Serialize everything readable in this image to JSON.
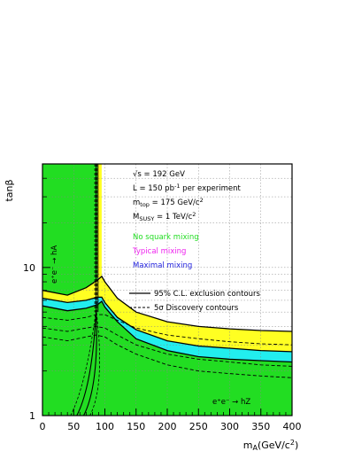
{
  "chart_data": {
    "type": "line",
    "xlabel": "m",
    "xlabel_sub": "A",
    "xlabel_unit": "(GeV/c",
    "xlabel_unit_sup": "2",
    "xlabel_unit_end": ")",
    "ylabel": "tanβ",
    "xlim": [
      0,
      400
    ],
    "ylim": [
      1,
      50
    ],
    "y_scale": "log",
    "grid": true,
    "x_ticks": [
      0,
      50,
      100,
      150,
      200,
      250,
      300,
      350,
      400
    ],
    "x_tick_labels": [
      "0",
      "50",
      "100",
      "150",
      "200",
      "250",
      "300",
      "350",
      "400"
    ],
    "y_ticks": [
      1,
      10
    ],
    "y_tick_labels": [
      "1",
      "10"
    ],
    "colors": {
      "excluded": "#22dd22",
      "typical_band": "#ffff22",
      "maximal_band": "#22eeee",
      "no_mixing_text": "#22dd22",
      "typical_text": "#ee22ee",
      "maximal_text": "#2222dd"
    },
    "annotations": {
      "sqrt_s": "√s = 192 GeV",
      "lumi_prefix": "L = 150 pb",
      "lumi_sup": "-1",
      "lumi_suffix": " per experiment",
      "mtop_m": "m",
      "mtop_sub": "top",
      "mtop_val": " = 175 GeV/c",
      "mtop_sup": "2",
      "msusy_m": "M",
      "msusy_sub": "SUSY",
      "msusy_val": " = 1 TeV/c",
      "msusy_sup": "2",
      "no_mixing": "No squark mixing",
      "typical_mixing": "Typical mixing",
      "maximal_mixing": "Maximal mixing",
      "legend_solid": "95% C.L. exclusion contours",
      "legend_dashed": "5σ Discovery contours",
      "process_hA": "e⁺e⁻ → hA",
      "process_hZ": "e⁺e⁻ → hZ"
    },
    "series": [
      {
        "name": "95% C.L. exclusion contours",
        "style": "solid",
        "curves": [
          {
            "x": [
              0,
              40,
              70,
              88,
              95,
              100,
              120,
              150,
              200,
              250,
              300,
              350,
              400
            ],
            "y": [
              7.0,
              6.5,
              7.3,
              8.2,
              8.7,
              8.0,
              6.2,
              5.0,
              4.3,
              4.0,
              3.85,
              3.75,
              3.7
            ]
          },
          {
            "x": [
              0,
              40,
              70,
              88,
              95,
              100,
              120,
              150,
              200,
              250,
              300,
              350,
              400
            ],
            "y": [
              6.2,
              5.8,
              6.0,
              6.3,
              6.3,
              5.8,
              4.6,
              3.8,
              3.2,
              2.95,
              2.85,
              2.75,
              2.7
            ]
          },
          {
            "x": [
              0,
              40,
              70,
              88,
              95,
              100,
              120,
              150,
              200,
              250,
              300,
              350,
              400
            ],
            "y": [
              5.5,
              5.1,
              5.3,
              5.6,
              5.9,
              5.4,
              4.3,
              3.3,
              2.75,
              2.5,
              2.4,
              2.35,
              2.3
            ]
          }
        ]
      },
      {
        "name": "5σ Discovery contours",
        "style": "dashed",
        "curves": [
          {
            "x": [
              0,
              40,
              70,
              86,
              100,
              120,
              150,
              200,
              250,
              300,
              350,
              400
            ],
            "y": [
              4.6,
              4.4,
              4.6,
              4.8,
              4.8,
              4.4,
              3.9,
              3.5,
              3.3,
              3.15,
              3.05,
              3.0
            ]
          },
          {
            "x": [
              0,
              40,
              70,
              86,
              100,
              120,
              150,
              200,
              250,
              300,
              350,
              400
            ],
            "y": [
              3.9,
              3.7,
              3.9,
              4.0,
              3.9,
              3.5,
              3.0,
              2.6,
              2.4,
              2.3,
              2.2,
              2.15
            ]
          },
          {
            "x": [
              0,
              40,
              70,
              86,
              100,
              120,
              150,
              200,
              250,
              300,
              350,
              400
            ],
            "y": [
              3.4,
              3.2,
              3.4,
              3.5,
              3.4,
              3.0,
              2.6,
              2.2,
              2.0,
              1.92,
              1.85,
              1.8
            ]
          }
        ]
      }
    ]
  }
}
